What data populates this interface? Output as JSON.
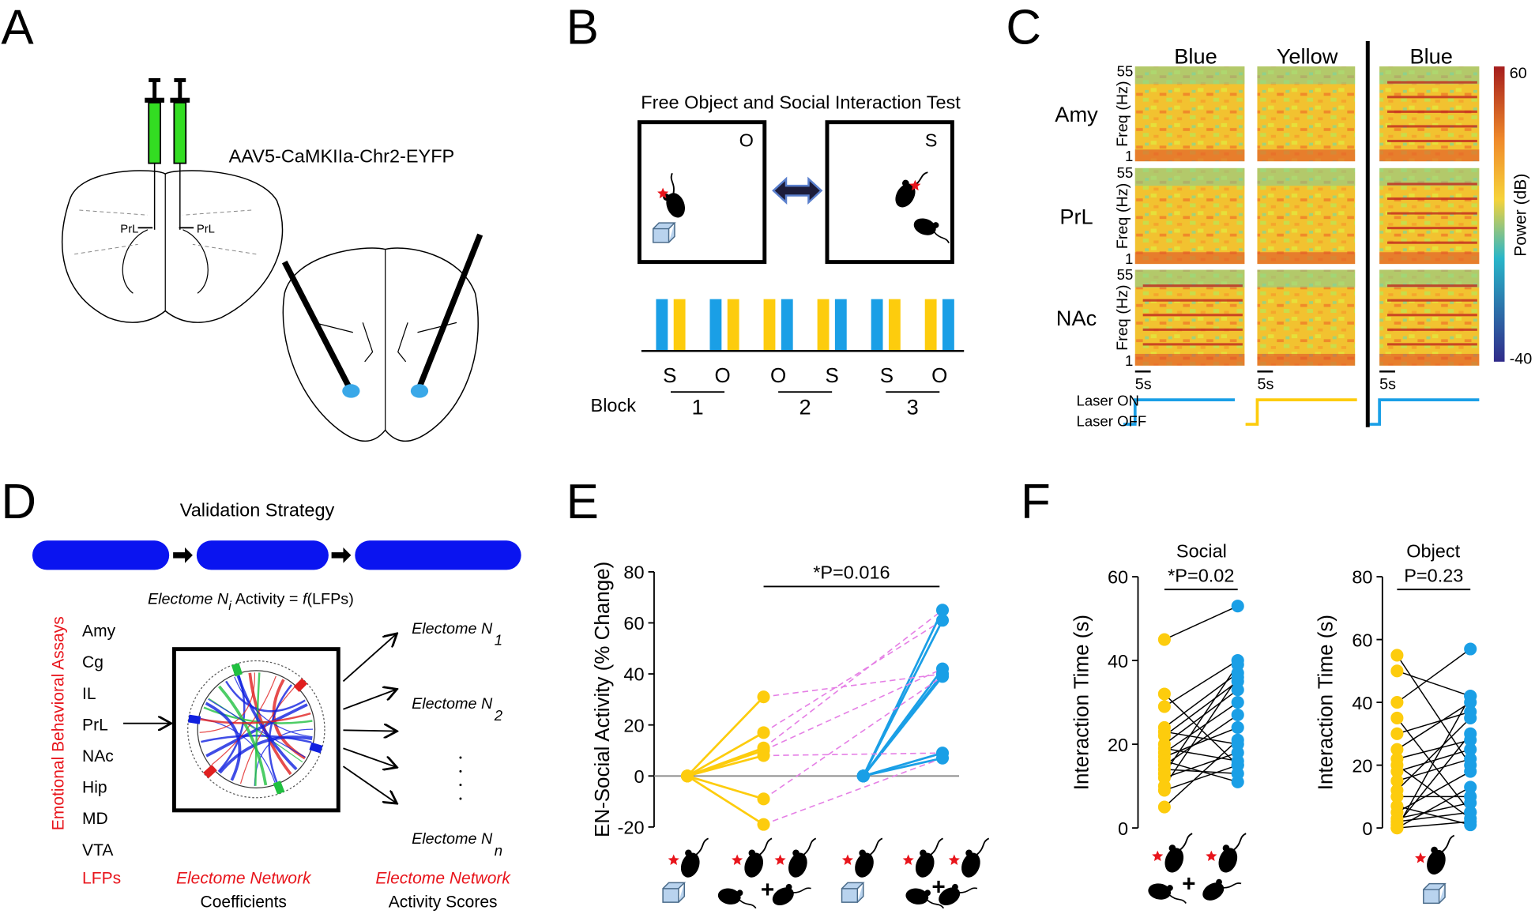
{
  "panel_labels": [
    "A",
    "B",
    "C",
    "D",
    "E",
    "F"
  ],
  "panel_a": {
    "virus": "AAV5-CaMKIIa-Chr2-EYFP",
    "regions": [
      "PrL",
      "PrL"
    ]
  },
  "panel_b": {
    "title": "Free Object and Social Interaction Test",
    "box_labels": [
      "O",
      "S"
    ],
    "order": [
      "S",
      "O",
      "O",
      "S",
      "S",
      "O"
    ],
    "block_label": "Block",
    "blocks": [
      "1",
      "2",
      "3"
    ]
  },
  "panel_c": {
    "columns": [
      "Blue",
      "Yellow",
      "Blue"
    ],
    "rows": [
      "Amy",
      "PrL",
      "NAc"
    ],
    "freq_label": "Freq (Hz)",
    "freq_ticks": [
      55,
      1
    ],
    "scale_label": "5s",
    "colorbar_label": "Power (dB)",
    "colorbar_ticks": [
      60,
      -40
    ],
    "laser_on": "Laser ON",
    "laser_off": "Laser OFF"
  },
  "panel_d": {
    "title": "Validation Strategy",
    "formula": [
      "Electome N",
      "i",
      "Activity = ",
      "f",
      "(LFPs)"
    ],
    "regions": [
      "Amy",
      "Cg",
      "IL",
      "PrL",
      "NAc",
      "Hip",
      "MD",
      "VTA"
    ],
    "side_label": "Emotional Behavioral Assays",
    "inputs_label": "LFPs",
    "outputs": [
      {
        "text": "Electome N",
        "sub": "1"
      },
      {
        "text": "Electome N",
        "sub": "2"
      },
      {
        "text": "Electome N",
        "sub": "n"
      }
    ],
    "coef_label": [
      "Electome Network",
      "Coefficients"
    ],
    "score_label": [
      "Electome  Network",
      "Activity Scores"
    ]
  },
  "chart_data": [
    {
      "type": "line",
      "ylabel": "EN-Social Activity (% Change)",
      "annotation": "*P=0.016",
      "ylim": [
        -20,
        80
      ],
      "yticks": [
        -20,
        0,
        20,
        40,
        60,
        80
      ],
      "pair_color": "#e57fe5",
      "series": [
        {
          "color": "#fdcc0d",
          "values": [
            0,
            0,
            0,
            0,
            0,
            0,
            0
          ]
        },
        {
          "color": "#fdcc0d",
          "values": [
            31,
            17,
            11,
            10,
            8,
            -9,
            -19
          ]
        },
        {
          "color": "#1a9fe6",
          "values": [
            0,
            0,
            0,
            0,
            0,
            0,
            0
          ]
        },
        {
          "color": "#1a9fe6",
          "values": [
            40,
            61,
            65,
            42,
            9,
            39,
            7
          ]
        }
      ]
    },
    {
      "type": "line",
      "title": "Social",
      "ylabel": "Interaction Time (s)",
      "annotation": "*P=0.02",
      "ylim": [
        0,
        60
      ],
      "yticks": [
        0,
        20,
        40,
        60
      ],
      "series": [
        {
          "color": "#fdcc0d",
          "values": [
            45,
            32,
            29,
            24,
            23,
            22,
            20,
            19,
            18,
            17,
            16,
            15,
            14,
            13,
            12,
            10,
            9,
            5
          ]
        },
        {
          "color": "#1a9fe6",
          "values": [
            53,
            15,
            40,
            37,
            20,
            35,
            33,
            16,
            30,
            24,
            11,
            27,
            13,
            39,
            18,
            36,
            15,
            21
          ]
        }
      ]
    },
    {
      "type": "line",
      "title": "Object",
      "ylabel": "Interaction Time (s)",
      "annotation": "P=0.23",
      "ylim": [
        0,
        80
      ],
      "yticks": [
        0,
        20,
        40,
        60,
        80
      ],
      "series": [
        {
          "color": "#fdcc0d",
          "values": [
            55,
            50,
            40,
            35,
            30,
            25,
            22,
            20,
            18,
            15,
            12,
            10,
            7,
            5,
            3,
            2,
            1,
            0,
            0,
            0
          ]
        },
        {
          "color": "#1a9fe6",
          "values": [
            20,
            42,
            57,
            5,
            37,
            40,
            28,
            3,
            25,
            22,
            35,
            10,
            1,
            18,
            8,
            5,
            30,
            42,
            2,
            13
          ]
        }
      ]
    }
  ]
}
